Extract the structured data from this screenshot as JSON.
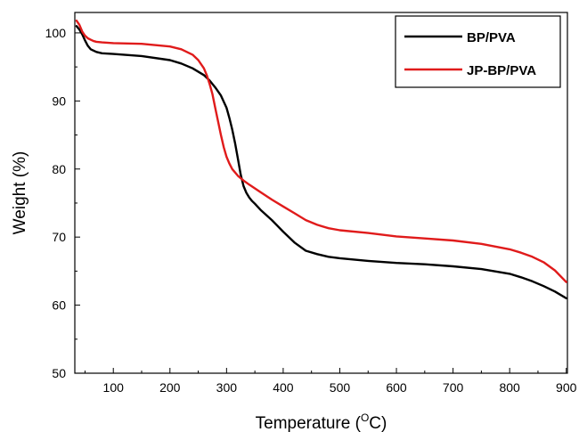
{
  "chart_data": {
    "type": "line",
    "title": "",
    "xlabel": "Temperature",
    "xlabel_unit_superscript": "O",
    "xlabel_unit": "C",
    "ylabel": "Weight (%)",
    "xlim": [
      32,
      902
    ],
    "ylim": [
      50,
      103
    ],
    "xticks": [
      100,
      200,
      300,
      400,
      500,
      600,
      700,
      800,
      900
    ],
    "yticks": [
      50,
      60,
      70,
      80,
      90,
      100
    ],
    "legend_position": "top-right",
    "grid": false,
    "series": [
      {
        "name": "BP/PVA",
        "color": "#000000",
        "x": [
          35,
          40,
          45,
          50,
          55,
          60,
          65,
          70,
          80,
          100,
          150,
          200,
          220,
          240,
          260,
          270,
          280,
          290,
          300,
          305,
          310,
          315,
          320,
          325,
          330,
          335,
          340,
          345,
          350,
          360,
          380,
          400,
          420,
          440,
          460,
          480,
          500,
          550,
          600,
          650,
          700,
          750,
          800,
          820,
          840,
          860,
          880,
          900
        ],
        "y": [
          101.0,
          100.5,
          99.8,
          98.9,
          98.1,
          97.6,
          97.4,
          97.2,
          97.0,
          96.9,
          96.6,
          96.0,
          95.5,
          94.8,
          93.8,
          93.0,
          92.0,
          90.8,
          89.0,
          87.5,
          85.8,
          83.8,
          81.5,
          79.2,
          77.5,
          76.5,
          75.8,
          75.3,
          74.9,
          74.0,
          72.5,
          70.8,
          69.2,
          68.0,
          67.5,
          67.1,
          66.9,
          66.5,
          66.2,
          66.0,
          65.7,
          65.3,
          64.6,
          64.1,
          63.5,
          62.8,
          62.0,
          61.0
        ]
      },
      {
        "name": "JP-BP/PVA",
        "color": "#e01b1b",
        "x": [
          35,
          40,
          45,
          50,
          55,
          60,
          65,
          70,
          80,
          100,
          150,
          200,
          220,
          240,
          250,
          260,
          265,
          270,
          275,
          280,
          285,
          290,
          295,
          300,
          305,
          310,
          320,
          330,
          340,
          360,
          380,
          400,
          420,
          440,
          460,
          480,
          500,
          550,
          600,
          650,
          700,
          750,
          800,
          820,
          840,
          860,
          880,
          900
        ],
        "y": [
          101.8,
          101.2,
          100.2,
          99.6,
          99.2,
          99.0,
          98.8,
          98.7,
          98.6,
          98.5,
          98.4,
          98.0,
          97.6,
          96.8,
          96.0,
          94.8,
          93.8,
          92.5,
          91.0,
          89.0,
          87.0,
          85.0,
          83.2,
          81.8,
          80.8,
          80.0,
          79.0,
          78.3,
          77.7,
          76.6,
          75.5,
          74.5,
          73.5,
          72.5,
          71.8,
          71.3,
          71.0,
          70.6,
          70.1,
          69.8,
          69.5,
          69.0,
          68.2,
          67.7,
          67.1,
          66.3,
          65.1,
          63.4
        ]
      }
    ]
  }
}
